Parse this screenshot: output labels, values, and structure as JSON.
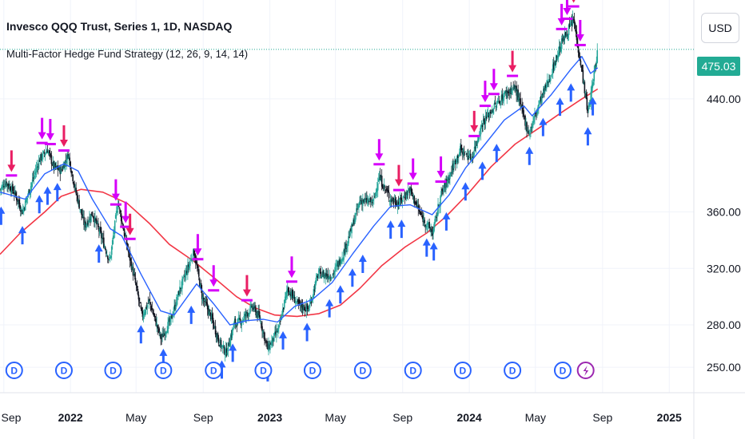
{
  "header": {
    "title": "Invesco QQQ Trust, Series 1, 1D, NASDAQ",
    "indicator": "Multi-Factor Hedge Fund Strategy (12, 26, 9, 14, 14)"
  },
  "controls": {
    "currency_label": "USD"
  },
  "last_price": {
    "label": "475.03",
    "value": 475.03
  },
  "colors": {
    "up_candle": "#26a69a",
    "down_candle": "#131722",
    "ema_fast": "#2962ff",
    "sma_slow": "#f23645",
    "buy_arrow": "#2962ff",
    "sell_arrow": "#e91e63",
    "sell_arrow_alt": "#d500f9",
    "last_price_bg": "#22ab94",
    "dividend": "#2962ff",
    "earnings": "#9c27b0"
  },
  "chart_data": {
    "type": "candlestick",
    "y_axis": {
      "ticks": [
        250,
        280,
        320,
        360,
        440
      ],
      "labels": [
        "250.00",
        "280.00",
        "320.00",
        "360.00",
        "440.00"
      ],
      "ylim": [
        232,
        510
      ]
    },
    "x_axis": {
      "labels": [
        "Sep",
        "2022",
        "May",
        "Sep",
        "2023",
        "May",
        "Sep",
        "2024",
        "May",
        "Sep",
        "2025"
      ],
      "label_dates": [
        "2021-09-01",
        "2022-01-01",
        "2022-05-01",
        "2022-09-01",
        "2023-01-01",
        "2023-05-01",
        "2023-09-01",
        "2024-01-01",
        "2024-05-01",
        "2024-09-01",
        "2025-01-01"
      ],
      "xlim": [
        "2021-08-25",
        "2025-02-15"
      ]
    },
    "price_path": [
      [
        "2021-08-25",
        376
      ],
      [
        "2021-09-05",
        381
      ],
      [
        "2021-09-20",
        374
      ],
      [
        "2021-10-05",
        360
      ],
      [
        "2021-10-20",
        378
      ],
      [
        "2021-11-05",
        397
      ],
      [
        "2021-11-20",
        404
      ],
      [
        "2021-12-01",
        392
      ],
      [
        "2021-12-15",
        389
      ],
      [
        "2021-12-28",
        401
      ],
      [
        "2022-01-10",
        375
      ],
      [
        "2022-01-27",
        350
      ],
      [
        "2022-02-10",
        359
      ],
      [
        "2022-02-25",
        344
      ],
      [
        "2022-03-14",
        325
      ],
      [
        "2022-03-29",
        367
      ],
      [
        "2022-04-12",
        340
      ],
      [
        "2022-04-28",
        313
      ],
      [
        "2022-05-12",
        286
      ],
      [
        "2022-05-25",
        297
      ],
      [
        "2022-06-16",
        270
      ],
      [
        "2022-07-05",
        285
      ],
      [
        "2022-07-20",
        305
      ],
      [
        "2022-08-15",
        332
      ],
      [
        "2022-08-30",
        300
      ],
      [
        "2022-09-15",
        286
      ],
      [
        "2022-09-30",
        268
      ],
      [
        "2022-10-13",
        260
      ],
      [
        "2022-10-28",
        281
      ],
      [
        "2022-11-10",
        283
      ],
      [
        "2022-11-30",
        293
      ],
      [
        "2022-12-13",
        285
      ],
      [
        "2022-12-28",
        263
      ],
      [
        "2023-01-18",
        278
      ],
      [
        "2023-02-02",
        306
      ],
      [
        "2023-02-22",
        294
      ],
      [
        "2023-03-13",
        291
      ],
      [
        "2023-03-30",
        316
      ],
      [
        "2023-04-25",
        315
      ],
      [
        "2023-05-15",
        330
      ],
      [
        "2023-06-01",
        350
      ],
      [
        "2023-06-15",
        368
      ],
      [
        "2023-07-10",
        367
      ],
      [
        "2023-07-19",
        385
      ],
      [
        "2023-08-10",
        369
      ],
      [
        "2023-08-25",
        366
      ],
      [
        "2023-09-14",
        376
      ],
      [
        "2023-10-05",
        357
      ],
      [
        "2023-10-26",
        345
      ],
      [
        "2023-11-10",
        372
      ],
      [
        "2023-11-28",
        388
      ],
      [
        "2023-12-15",
        404
      ],
      [
        "2024-01-05",
        398
      ],
      [
        "2024-01-25",
        423
      ],
      [
        "2024-02-15",
        434
      ],
      [
        "2024-03-08",
        444
      ],
      [
        "2024-03-25",
        448
      ],
      [
        "2024-04-19",
        415
      ],
      [
        "2024-05-08",
        437
      ],
      [
        "2024-05-28",
        456
      ],
      [
        "2024-06-18",
        480
      ],
      [
        "2024-07-10",
        496
      ],
      [
        "2024-07-25",
        460
      ],
      [
        "2024-08-05",
        430
      ],
      [
        "2024-08-12",
        446
      ],
      [
        "2024-08-23",
        475
      ]
    ],
    "ema_path": [
      [
        "2021-08-25",
        374
      ],
      [
        "2021-10-10",
        369
      ],
      [
        "2021-11-15",
        387
      ],
      [
        "2021-12-20",
        394
      ],
      [
        "2022-01-15",
        389
      ],
      [
        "2022-02-10",
        369
      ],
      [
        "2022-03-15",
        348
      ],
      [
        "2022-04-05",
        343
      ],
      [
        "2022-05-10",
        316
      ],
      [
        "2022-06-15",
        290
      ],
      [
        "2022-07-10",
        287
      ],
      [
        "2022-08-20",
        309
      ],
      [
        "2022-09-20",
        295
      ],
      [
        "2022-10-20",
        280
      ],
      [
        "2022-11-20",
        283
      ],
      [
        "2022-12-20",
        284
      ],
      [
        "2023-01-15",
        282
      ],
      [
        "2023-02-15",
        293
      ],
      [
        "2023-03-20",
        298
      ],
      [
        "2023-04-25",
        310
      ],
      [
        "2023-06-01",
        330
      ],
      [
        "2023-07-10",
        350
      ],
      [
        "2023-08-10",
        364
      ],
      [
        "2023-09-15",
        365
      ],
      [
        "2023-10-25",
        358
      ],
      [
        "2023-11-25",
        372
      ],
      [
        "2023-12-25",
        391
      ],
      [
        "2024-01-30",
        408
      ],
      [
        "2024-03-05",
        425
      ],
      [
        "2024-04-10",
        435
      ],
      [
        "2024-04-25",
        428
      ],
      [
        "2024-05-30",
        443
      ],
      [
        "2024-07-05",
        461
      ],
      [
        "2024-07-25",
        470
      ],
      [
        "2024-08-10",
        458
      ],
      [
        "2024-08-23",
        462
      ]
    ],
    "sma_path": [
      [
        "2021-08-25",
        330
      ],
      [
        "2021-10-01",
        345
      ],
      [
        "2021-11-15",
        360
      ],
      [
        "2021-12-15",
        371
      ],
      [
        "2022-01-20",
        376
      ],
      [
        "2022-03-01",
        374
      ],
      [
        "2022-04-15",
        366
      ],
      [
        "2022-05-25",
        352
      ],
      [
        "2022-07-01",
        337
      ],
      [
        "2022-08-15",
        325
      ],
      [
        "2022-09-25",
        312
      ],
      [
        "2022-11-01",
        300
      ],
      [
        "2022-12-05",
        292
      ],
      [
        "2023-01-10",
        287
      ],
      [
        "2023-02-20",
        286
      ],
      [
        "2023-04-01",
        288
      ],
      [
        "2023-05-10",
        294
      ],
      [
        "2023-06-15",
        306
      ],
      [
        "2023-07-25",
        322
      ],
      [
        "2023-09-05",
        335
      ],
      [
        "2023-10-15",
        345
      ],
      [
        "2023-11-20",
        357
      ],
      [
        "2023-12-30",
        373
      ],
      [
        "2024-02-10",
        392
      ],
      [
        "2024-03-25",
        408
      ],
      [
        "2024-05-10",
        420
      ],
      [
        "2024-06-20",
        431
      ],
      [
        "2024-07-25",
        440
      ],
      [
        "2024-08-23",
        447
      ]
    ],
    "buy_signals": [
      "2021-08-27",
      "2021-10-05",
      "2021-11-05",
      "2021-11-20",
      "2021-12-08",
      "2022-02-22",
      "2022-05-10",
      "2022-06-20",
      "2022-08-10",
      "2022-10-05",
      "2022-10-25",
      "2022-12-28",
      "2023-01-25",
      "2023-03-10",
      "2023-04-20",
      "2023-05-10",
      "2023-06-01",
      "2023-06-20",
      "2023-08-10",
      "2023-08-30",
      "2023-10-15",
      "2023-10-28",
      "2023-11-20",
      "2023-12-25",
      "2024-01-25",
      "2024-02-20",
      "2024-04-20",
      "2024-05-15",
      "2024-06-15",
      "2024-07-05",
      "2024-08-05",
      "2024-08-14"
    ],
    "sell_signals": [
      "2021-09-15",
      "2021-11-10",
      "2021-11-25",
      "2021-12-20",
      "2022-03-25",
      "2022-04-12",
      "2022-04-20",
      "2022-08-22",
      "2022-09-20",
      "2022-11-20",
      "2023-02-10",
      "2023-07-20",
      "2023-08-25",
      "2023-09-20",
      "2023-11-10",
      "2024-01-10",
      "2024-01-30",
      "2024-02-15",
      "2024-03-20",
      "2024-06-18",
      "2024-06-28",
      "2024-07-10",
      "2024-07-22"
    ],
    "markers": [
      {
        "date": "2021-09-20",
        "type": "D"
      },
      {
        "date": "2021-12-20",
        "type": "D"
      },
      {
        "date": "2022-03-20",
        "type": "D"
      },
      {
        "date": "2022-06-20",
        "type": "D"
      },
      {
        "date": "2022-09-20",
        "type": "D"
      },
      {
        "date": "2022-12-20",
        "type": "D"
      },
      {
        "date": "2023-03-20",
        "type": "D"
      },
      {
        "date": "2023-06-20",
        "type": "D"
      },
      {
        "date": "2023-09-20",
        "type": "D"
      },
      {
        "date": "2023-12-20",
        "type": "D"
      },
      {
        "date": "2024-03-20",
        "type": "D"
      },
      {
        "date": "2024-06-20",
        "type": "D"
      },
      {
        "date": "2024-08-01",
        "type": "E"
      }
    ],
    "grid": true
  }
}
